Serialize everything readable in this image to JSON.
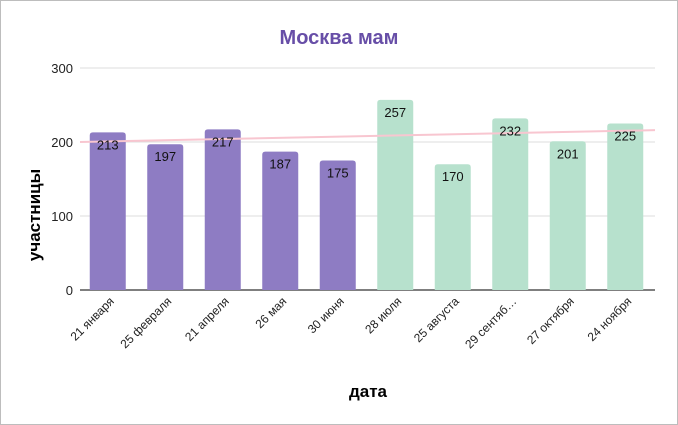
{
  "chart_data": {
    "type": "bar",
    "title": "Москва мам",
    "xlabel": "дата",
    "ylabel": "участницы",
    "categories": [
      "21 января",
      "25 февраля",
      "21 апреля",
      "26 мая",
      "30 июня",
      "28 июля",
      "25 августа",
      "29 сентяб…",
      "27 октября",
      "24 ноября"
    ],
    "values": [
      213,
      197,
      217,
      187,
      175,
      257,
      170,
      232,
      201,
      225
    ],
    "bar_colors": [
      "#8e7cc3",
      "#8e7cc3",
      "#8e7cc3",
      "#8e7cc3",
      "#8e7cc3",
      "#b7e1cd",
      "#b7e1cd",
      "#b7e1cd",
      "#b7e1cd",
      "#b7e1cd"
    ],
    "ylim": [
      0,
      300
    ],
    "yticks": [
      0,
      100,
      200,
      300
    ],
    "grid": true,
    "trendline": {
      "type": "linear",
      "start": 200,
      "end": 216,
      "color": "#f8c6d0"
    },
    "title_color": "#674ea7",
    "data_labels": true
  }
}
